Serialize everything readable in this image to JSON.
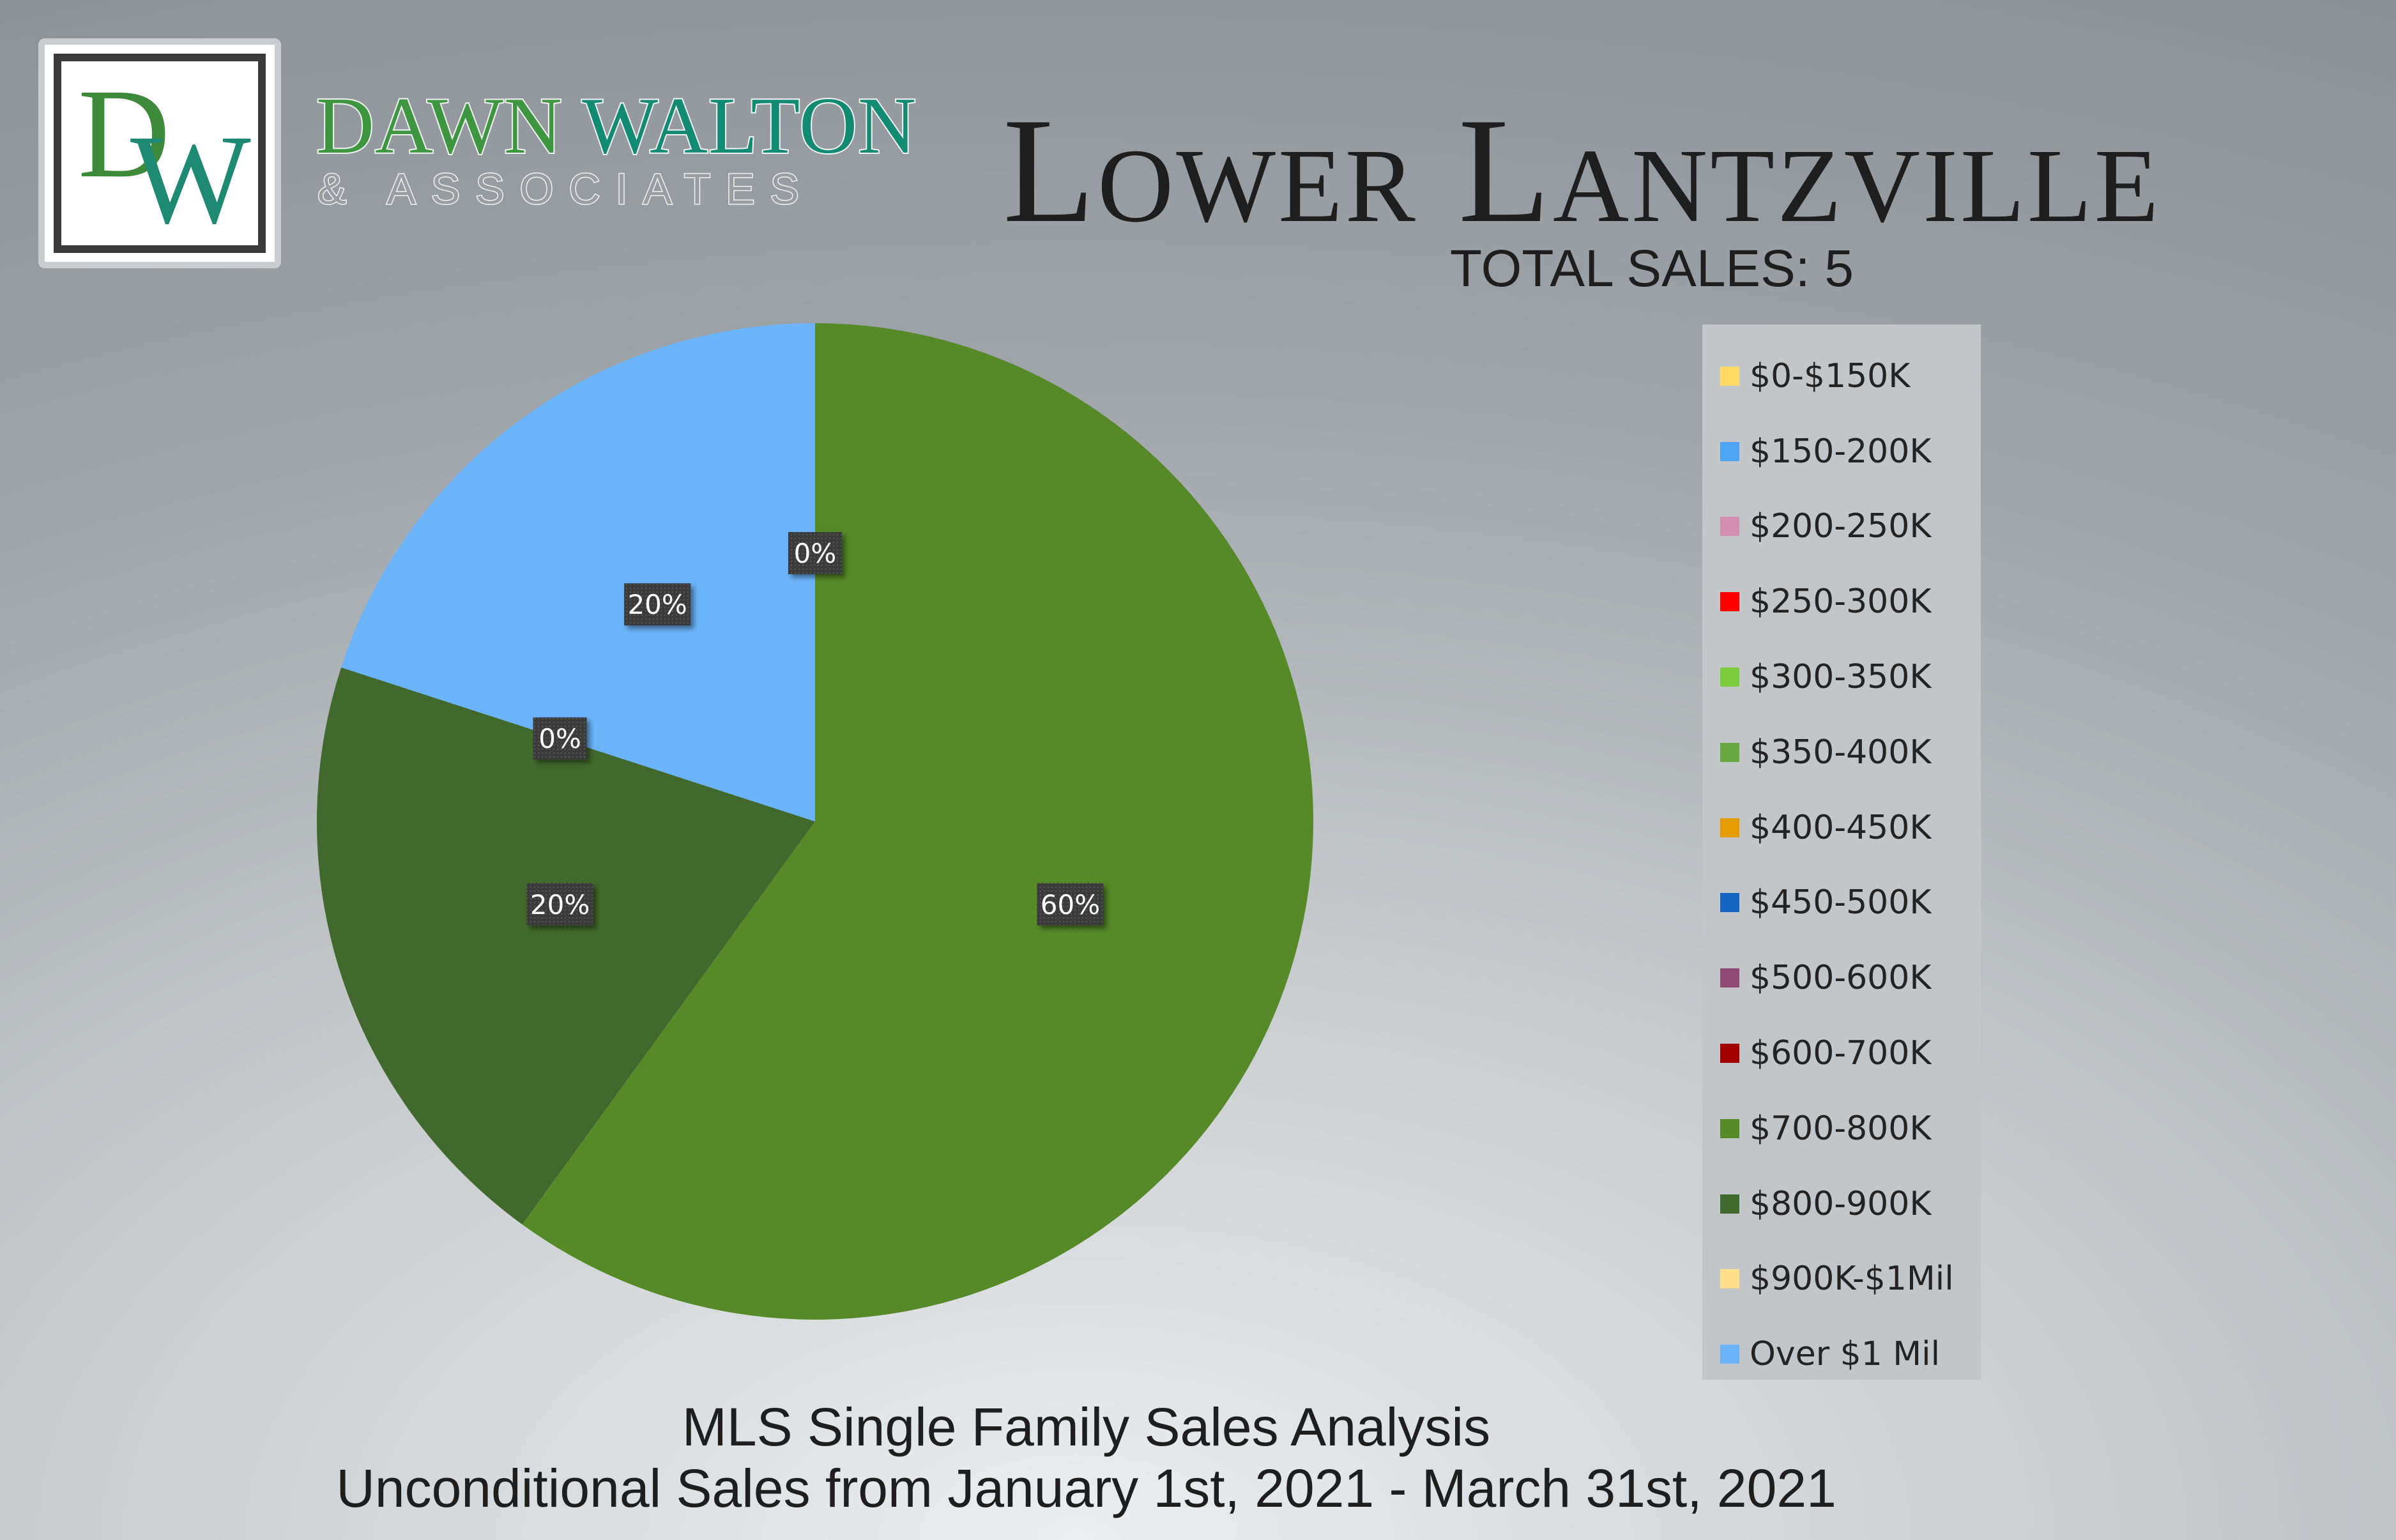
{
  "brand": {
    "logo_letter_1": "D",
    "logo_letter_2": "W",
    "name_part1": "DAWN",
    "name_part2": "WALTON",
    "subline": "& ASSOCIATES"
  },
  "header": {
    "title": "Lower Lantzville",
    "total_sales": "TOTAL SALES: 5"
  },
  "footer": {
    "line1": "MLS Single Family Sales Analysis",
    "line2": "Unconditional Sales from January 1st, 2021 - March 31st, 2021"
  },
  "chart_data": {
    "type": "pie",
    "title": "",
    "categories": [
      "$0-$150K",
      "$150-200K",
      "$200-250K",
      "$250-300K",
      "$300-350K",
      "$350-400K",
      "$400-450K",
      "$450-500K",
      "$500-600K",
      "$600-700K",
      "$700-800K",
      "$800-900K",
      "$900K-$1Mil",
      "Over $1 Mil"
    ],
    "values": [
      0,
      0,
      0,
      0,
      0,
      0,
      0,
      0,
      0,
      0,
      60,
      20,
      0,
      20
    ],
    "colors": [
      "#ffd966",
      "#4ea3f2",
      "#d48eb0",
      "#ff0000",
      "#7ccc3d",
      "#6aa843",
      "#e59c00",
      "#1565c0",
      "#8e4a72",
      "#a50000",
      "#568a28",
      "#42692d",
      "#ffe08a",
      "#6cb4fa"
    ],
    "data_labels": [
      {
        "category": "$700-800K",
        "text": "60%"
      },
      {
        "category": "$800-900K",
        "text": "20%"
      },
      {
        "category": "$900K-$1Mil",
        "text": "0%"
      },
      {
        "category": "Over $1 Mil",
        "text": "20%"
      },
      {
        "category": "$0-$150K",
        "text": "0%"
      }
    ],
    "legend_position": "right"
  }
}
